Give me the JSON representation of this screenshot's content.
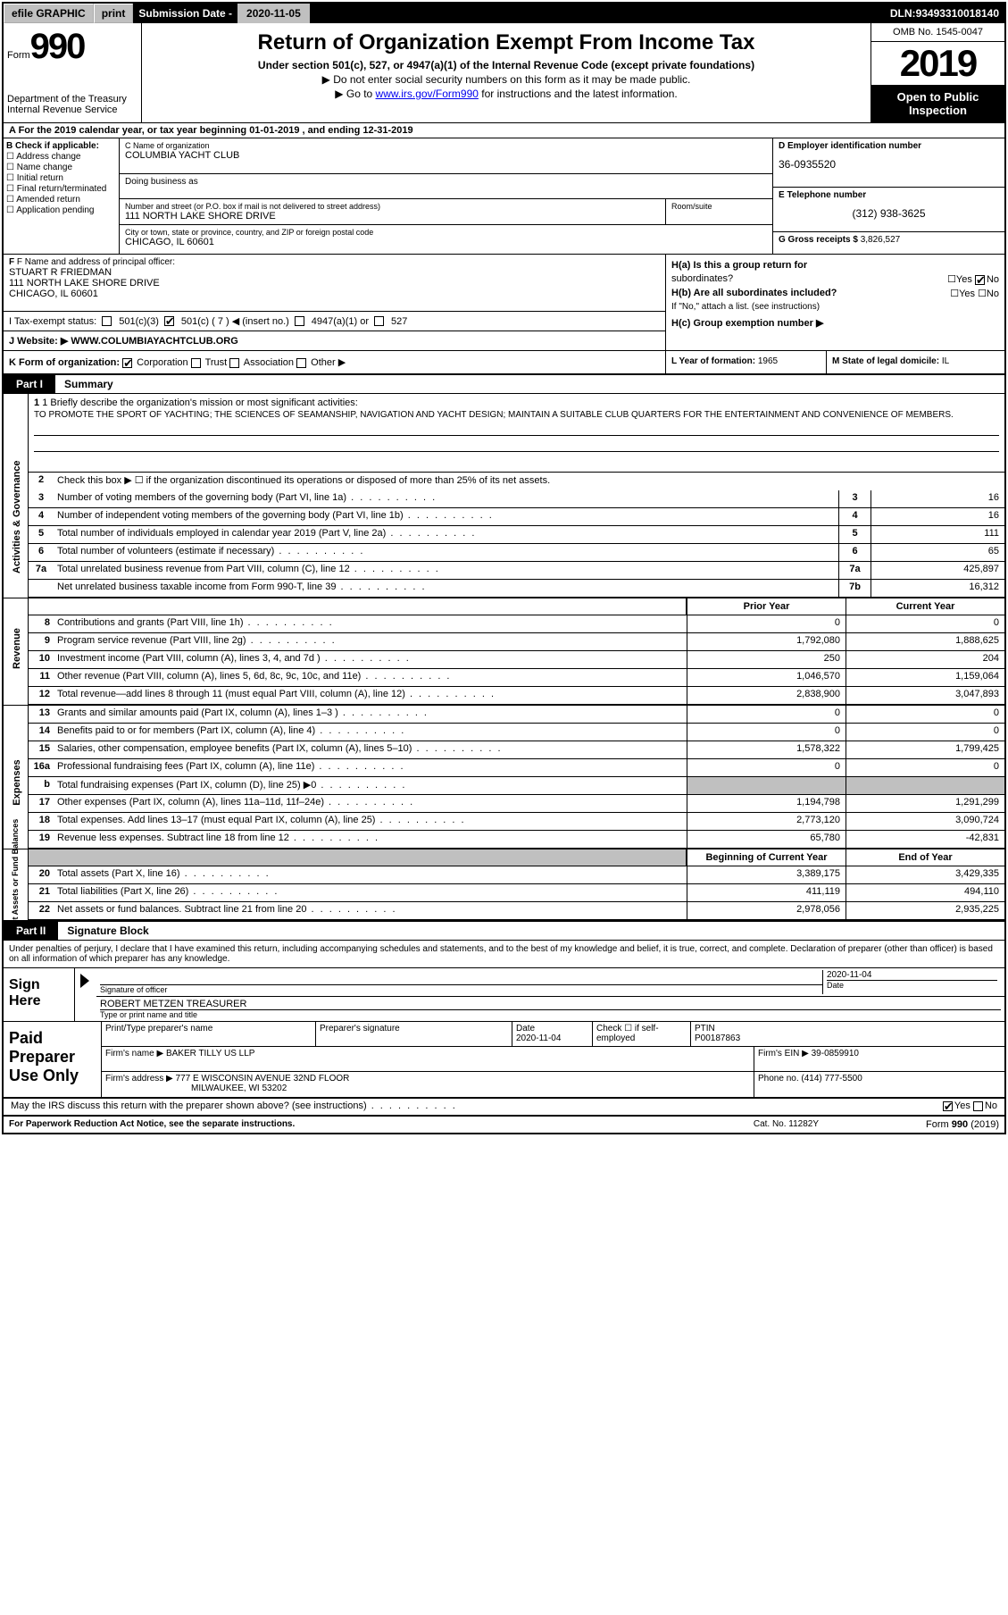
{
  "topbar": {
    "efile": "efile GRAPHIC",
    "print": "print",
    "sub_label": "Submission Date - ",
    "sub_date": "2020-11-05",
    "dln_label": "DLN: ",
    "dln": "93493310018140"
  },
  "header": {
    "form_label": "Form",
    "form_num": "990",
    "dept": "Department of the Treasury\nInternal Revenue Service",
    "title": "Return of Organization Exempt From Income Tax",
    "subtitle": "Under section 501(c), 527, or 4947(a)(1) of the Internal Revenue Code (except private foundations)",
    "inst1": "▶ Do not enter social security numbers on this form as it may be made public.",
    "inst2_pre": "▶ Go to ",
    "inst2_link": "www.irs.gov/Form990",
    "inst2_post": " for instructions and the latest information.",
    "omb": "OMB No. 1545-0047",
    "year": "2019",
    "inspection": "Open to Public Inspection"
  },
  "section_a": "A For the 2019 calendar year, or tax year beginning 01-01-2019    , and ending 12-31-2019",
  "section_b": {
    "label": "B Check if applicable:",
    "items": [
      "Address change",
      "Name change",
      "Initial return",
      "Final return/terminated",
      "Amended return",
      "Application pending"
    ]
  },
  "section_c": {
    "name_label": "C Name of organization",
    "name": "COLUMBIA YACHT CLUB",
    "dba_label": "Doing business as",
    "addr_label": "Number and street (or P.O. box if mail is not delivered to street address)",
    "addr": "111 NORTH LAKE SHORE DRIVE",
    "room_label": "Room/suite",
    "city_label": "City or town, state or province, country, and ZIP or foreign postal code",
    "city": "CHICAGO, IL  60601"
  },
  "section_d": {
    "label": "D Employer identification number",
    "value": "36-0935520"
  },
  "section_e": {
    "label": "E Telephone number",
    "value": "(312) 938-3625"
  },
  "section_g": {
    "label": "G Gross receipts $ ",
    "value": "3,826,527"
  },
  "section_f": {
    "label": "F  Name and address of principal officer:",
    "name": "STUART R FRIEDMAN",
    "addr": "111 NORTH LAKE SHORE DRIVE",
    "city": "CHICAGO, IL  60601"
  },
  "section_h": {
    "ha_label": "H(a)  Is this a group return for",
    "ha_label2": "subordinates?",
    "ha_no": true,
    "hb_label": "H(b)  Are all subordinates included?",
    "hb_note": "If \"No,\" attach a list. (see instructions)",
    "hc_label": "H(c)  Group exemption number ▶"
  },
  "section_i": {
    "label": "I   Tax-exempt status:",
    "opts": [
      "501(c)(3)",
      "501(c) ( 7 ) ◀ (insert no.)",
      "4947(a)(1) or",
      "527"
    ],
    "checked_idx": 1
  },
  "section_j": {
    "label": "J   Website: ▶",
    "value": " WWW.COLUMBIAYACHTCLUB.ORG"
  },
  "section_k": {
    "label": "K Form of organization:",
    "opts": [
      "Corporation",
      "Trust",
      "Association",
      "Other ▶"
    ],
    "checked_idx": 0
  },
  "section_l": {
    "label": "L Year of formation: ",
    "value": "1965"
  },
  "section_m": {
    "label": "M State of legal domicile: ",
    "value": "IL"
  },
  "part1": {
    "tab": "Part I",
    "title": "Summary",
    "line1_label": "1  Briefly describe the organization's mission or most significant activities:",
    "mission": "TO PROMOTE THE SPORT OF YACHTING; THE SCIENCES OF SEAMANSHIP, NAVIGATION AND YACHT DESIGN; MAINTAIN A SUITABLE CLUB QUARTERS FOR THE ENTERTAINMENT AND CONVENIENCE OF MEMBERS.",
    "line2": "Check this box ▶ ☐  if the organization discontinued its operations or disposed of more than 25% of its net assets.",
    "sidebars": {
      "gov": "Activities & Governance",
      "rev": "Revenue",
      "exp": "Expenses",
      "net": "Net Assets or Fund Balances"
    },
    "gov_lines": [
      {
        "num": "3",
        "text": "Number of voting members of the governing body (Part VI, line 1a)",
        "box": "3",
        "val": "16"
      },
      {
        "num": "4",
        "text": "Number of independent voting members of the governing body (Part VI, line 1b)",
        "box": "4",
        "val": "16"
      },
      {
        "num": "5",
        "text": "Total number of individuals employed in calendar year 2019 (Part V, line 2a)",
        "box": "5",
        "val": "111"
      },
      {
        "num": "6",
        "text": "Total number of volunteers (estimate if necessary)",
        "box": "6",
        "val": "65"
      },
      {
        "num": "7a",
        "text": "Total unrelated business revenue from Part VIII, column (C), line 12",
        "box": "7a",
        "val": "425,897"
      },
      {
        "num": "",
        "text": "Net unrelated business taxable income from Form 990-T, line 39",
        "box": "7b",
        "val": "16,312"
      }
    ],
    "col_headers": {
      "prior": "Prior Year",
      "current": "Current Year",
      "begin": "Beginning of Current Year",
      "end": "End of Year"
    },
    "rev_lines": [
      {
        "num": "8",
        "text": "Contributions and grants (Part VIII, line 1h)",
        "prior": "0",
        "current": "0"
      },
      {
        "num": "9",
        "text": "Program service revenue (Part VIII, line 2g)",
        "prior": "1,792,080",
        "current": "1,888,625"
      },
      {
        "num": "10",
        "text": "Investment income (Part VIII, column (A), lines 3, 4, and 7d )",
        "prior": "250",
        "current": "204"
      },
      {
        "num": "11",
        "text": "Other revenue (Part VIII, column (A), lines 5, 6d, 8c, 9c, 10c, and 11e)",
        "prior": "1,046,570",
        "current": "1,159,064"
      },
      {
        "num": "12",
        "text": "Total revenue—add lines 8 through 11 (must equal Part VIII, column (A), line 12)",
        "prior": "2,838,900",
        "current": "3,047,893"
      }
    ],
    "exp_lines": [
      {
        "num": "13",
        "text": "Grants and similar amounts paid (Part IX, column (A), lines 1–3 )",
        "prior": "0",
        "current": "0"
      },
      {
        "num": "14",
        "text": "Benefits paid to or for members (Part IX, column (A), line 4)",
        "prior": "0",
        "current": "0"
      },
      {
        "num": "15",
        "text": "Salaries, other compensation, employee benefits (Part IX, column (A), lines 5–10)",
        "prior": "1,578,322",
        "current": "1,799,425"
      },
      {
        "num": "16a",
        "text": "Professional fundraising fees (Part IX, column (A), line 11e)",
        "prior": "0",
        "current": "0"
      },
      {
        "num": "b",
        "text": "Total fundraising expenses (Part IX, column (D), line 25) ▶0",
        "prior": "",
        "current": "",
        "gray": true
      },
      {
        "num": "17",
        "text": "Other expenses (Part IX, column (A), lines 11a–11d, 11f–24e)",
        "prior": "1,194,798",
        "current": "1,291,299"
      },
      {
        "num": "18",
        "text": "Total expenses. Add lines 13–17 (must equal Part IX, column (A), line 25)",
        "prior": "2,773,120",
        "current": "3,090,724"
      },
      {
        "num": "19",
        "text": "Revenue less expenses. Subtract line 18 from line 12",
        "prior": "65,780",
        "current": "-42,831"
      }
    ],
    "net_lines": [
      {
        "num": "20",
        "text": "Total assets (Part X, line 16)",
        "prior": "3,389,175",
        "current": "3,429,335"
      },
      {
        "num": "21",
        "text": "Total liabilities (Part X, line 26)",
        "prior": "411,119",
        "current": "494,110"
      },
      {
        "num": "22",
        "text": "Net assets or fund balances. Subtract line 21 from line 20",
        "prior": "2,978,056",
        "current": "2,935,225"
      }
    ]
  },
  "part2": {
    "tab": "Part II",
    "title": "Signature Block",
    "penalty": "Under penalties of perjury, I declare that I have examined this return, including accompanying schedules and statements, and to the best of my knowledge and belief, it is true, correct, and complete. Declaration of preparer (other than officer) is based on all information of which preparer has any knowledge.",
    "sign_here": "Sign Here",
    "sig_officer_label": "Signature of officer",
    "sig_date": "2020-11-04",
    "sig_date_label": "Date",
    "sig_name": "ROBERT METZEN  TREASURER",
    "sig_name_label": "Type or print name and title",
    "paid_label": "Paid Preparer Use Only",
    "prep_name_label": "Print/Type preparer's name",
    "prep_sig_label": "Preparer's signature",
    "prep_date_label": "Date",
    "prep_date": "2020-11-04",
    "prep_check_label": "Check ☐ if self-employed",
    "prep_ptin_label": "PTIN",
    "prep_ptin": "P00187863",
    "firm_name_label": "Firm's name    ▶ ",
    "firm_name": "BAKER TILLY US LLP",
    "firm_ein_label": "Firm's EIN ▶ ",
    "firm_ein": "39-0859910",
    "firm_addr_label": "Firm's address ▶ ",
    "firm_addr": "777 E WISCONSIN AVENUE 32ND FLOOR",
    "firm_city": "MILWAUKEE, WI  53202",
    "phone_label": "Phone no. ",
    "phone": "(414) 777-5500",
    "discuss": "May the IRS discuss this return with the preparer shown above? (see instructions)",
    "discuss_yes": true
  },
  "footer": {
    "left": "For Paperwork Reduction Act Notice, see the separate instructions.",
    "center": "Cat. No. 11282Y",
    "right": "Form 990 (2019)"
  }
}
